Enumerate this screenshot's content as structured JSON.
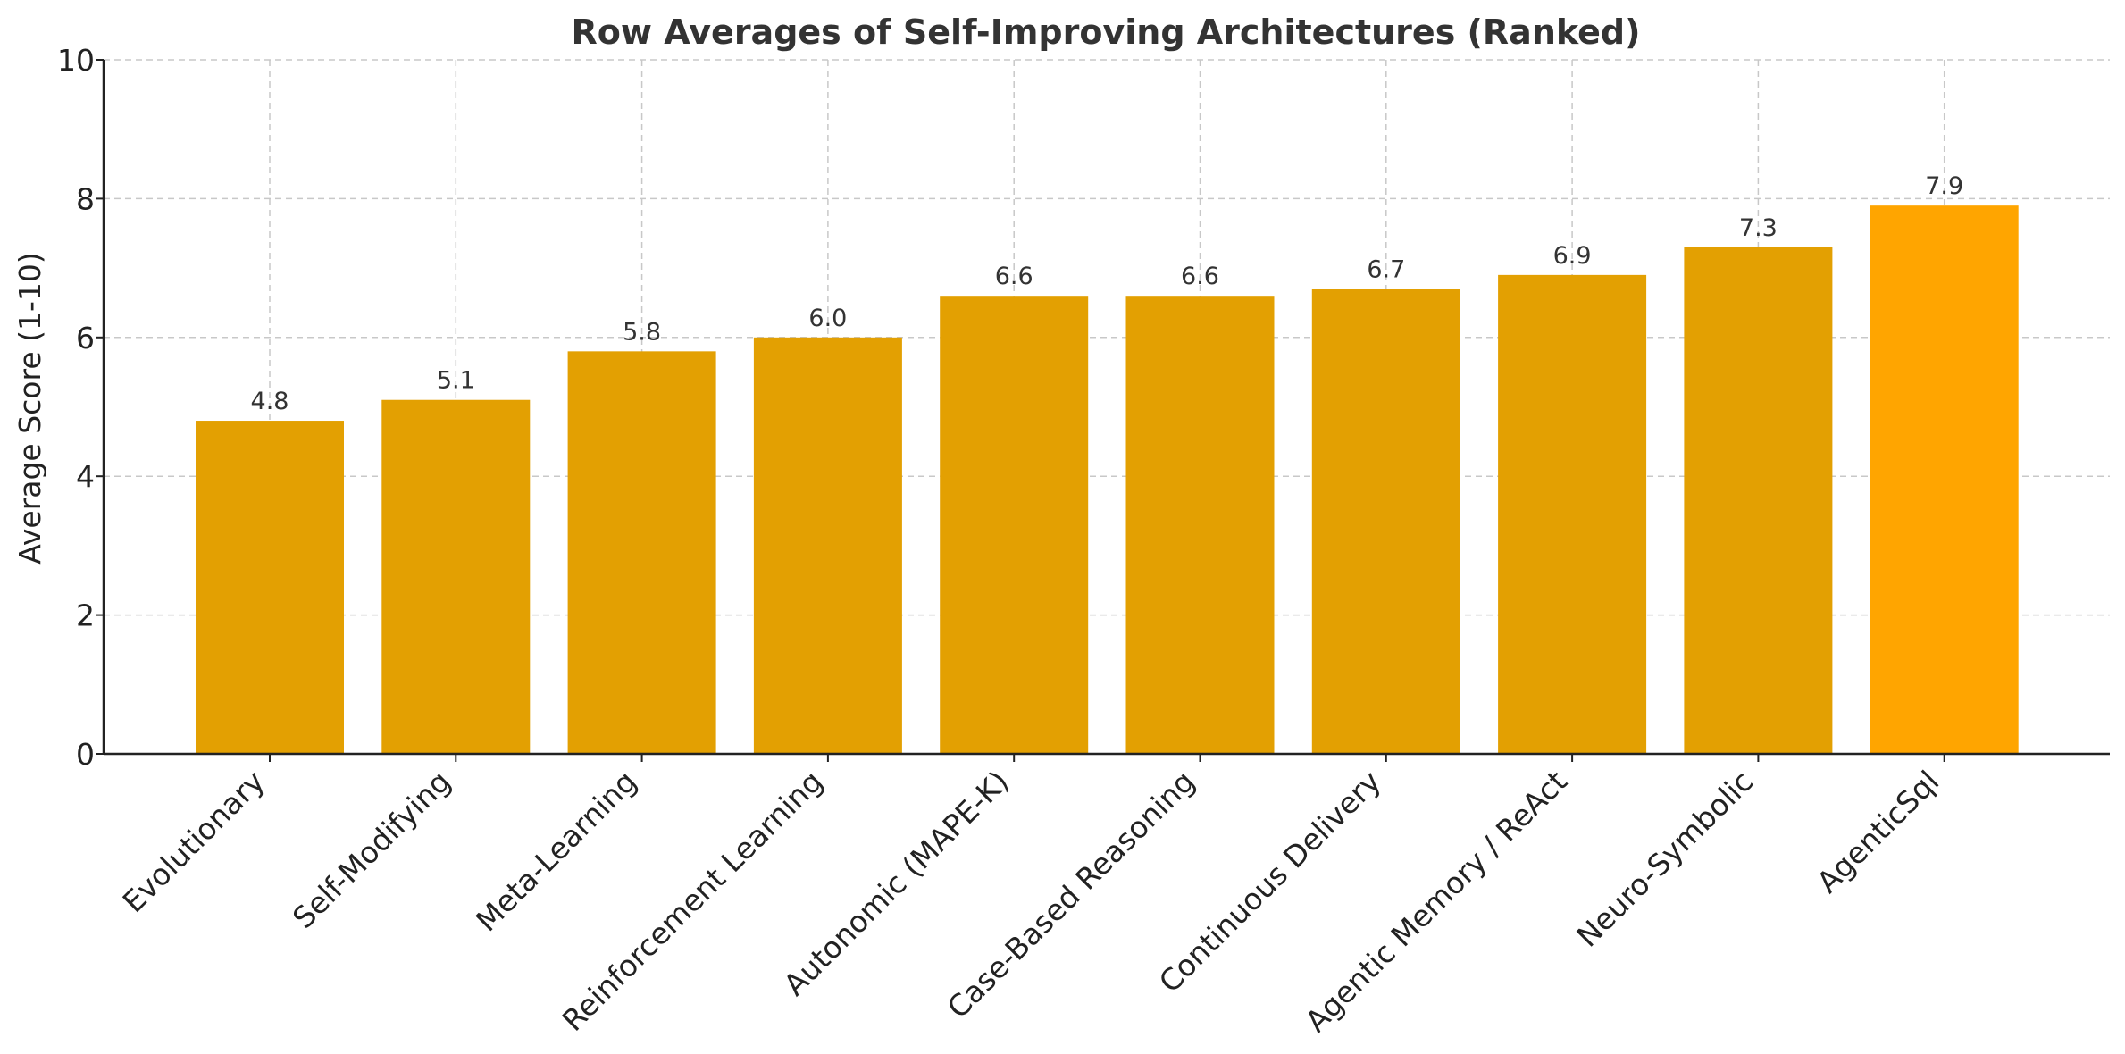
{
  "chart_data": {
    "type": "bar",
    "title": "Row Averages of Self-Improving Architectures (Ranked)",
    "xlabel": "",
    "ylabel": "Average Score (1-10)",
    "ylim": [
      0,
      10
    ],
    "yticks": [
      "0",
      "2",
      "4",
      "6",
      "8",
      "10"
    ],
    "grid": true,
    "categories": [
      "Evolutionary",
      "Self-Modifying",
      "Meta-Learning",
      "Reinforcement Learning",
      "Autonomic (MAPE-K)",
      "Case-Based Reasoning",
      "Continuous Delivery",
      "Agentic Memory / ReAct",
      "Neuro-Symbolic",
      "AgenticSql"
    ],
    "values": [
      4.8,
      5.1,
      5.8,
      6.0,
      6.6,
      6.6,
      6.7,
      6.9,
      7.3,
      7.9
    ],
    "value_labels": [
      "4.8",
      "5.1",
      "5.8",
      "6.0",
      "6.6",
      "6.6",
      "6.7",
      "6.9",
      "7.3",
      "7.9"
    ],
    "colors": {
      "bar": "#e3a002",
      "highlight": "#ffa500",
      "highlight_category": "AgenticSql"
    }
  }
}
